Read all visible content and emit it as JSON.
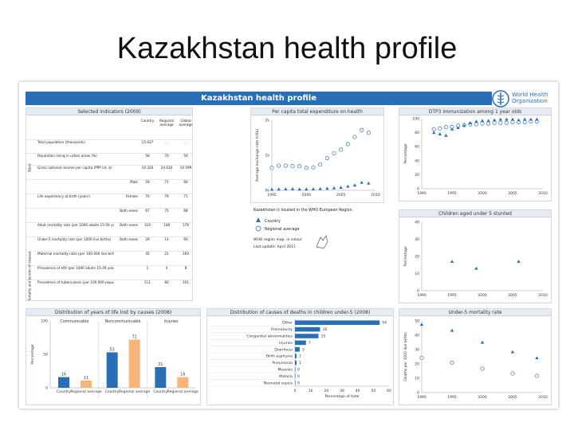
{
  "slide_title": "Kazakhstan health profile",
  "banner_title": "Kazakhstan health profile",
  "who_logo": {
    "line1": "World Health",
    "line2": "Organization",
    "icon": "who-emblem-icon"
  },
  "indicators": {
    "title": "Selected indicators (2009)",
    "columns": [
      "Country",
      "Regional average",
      "Global average"
    ],
    "side_labels": [
      "Basic",
      "Mortality and burden of disease"
    ],
    "rows": [
      {
        "label": "Total population (thousands)",
        "sub": "",
        "values": [
          "15 637",
          "...",
          "..."
        ]
      },
      {
        "label": "Population living in urban areas (%)",
        "sub": "",
        "values": [
          "58",
          "70",
          "50"
        ]
      },
      {
        "label": "Gross national income per capita (PPP int. $)",
        "sub": "",
        "values": [
          "10 320",
          "24 630",
          "10 599"
        ]
      },
      {
        "label": "",
        "sub": "Male",
        "values": [
          "59",
          "71",
          "66"
        ]
      },
      {
        "label": "Life expectancy at birth (years)",
        "sub": "Female",
        "values": [
          "70",
          "79",
          "71"
        ]
      },
      {
        "label": "",
        "sub": "Both sexes",
        "values": [
          "67",
          "75",
          "68"
        ]
      },
      {
        "label": "Adult mortality rate (per 1000 adults 15-59 years)",
        "sub": "Both sexes",
        "values": [
          "310",
          "148",
          "176"
        ]
      },
      {
        "label": "Under-5 mortality rate (per 1000 live births)",
        "sub": "Both sexes",
        "values": [
          "29",
          "14",
          "60"
        ]
      },
      {
        "label": "Maternal mortality ratio (per 100 000 live births)",
        "sub": "",
        "values": [
          "45",
          "21",
          "260"
        ]
      },
      {
        "label": "Prevalence of HIV (per 1000 adults 15-49 years)",
        "sub": "",
        "values": [
          "1",
          "4",
          "8"
        ]
      },
      {
        "label": "Prevalence of tuberculosis (per 100 000 population)",
        "sub": "",
        "values": [
          "211",
          "60",
          "201"
        ]
      }
    ]
  },
  "legend_area": {
    "location_text": "Kazakhstan is located in the WHO European Region.",
    "legend": [
      {
        "symbol": "triangle",
        "label": "Country"
      },
      {
        "symbol": "circle",
        "label": "Regional average"
      }
    ],
    "source_text": "WHO region map, in colour",
    "update_text": "Last update: April 2011"
  },
  "chart_data": [
    {
      "id": "expenditure",
      "type": "scatter",
      "title": "Per capita total expenditure on health",
      "ylabel": "Average exchange rate (US$)",
      "x_ticks": [
        "1995",
        "2000",
        "2005",
        "2010"
      ],
      "y_ticks": [
        "0k",
        "1k",
        "2k"
      ],
      "xlim": [
        1995,
        2010
      ],
      "ylim": [
        0,
        2500
      ],
      "series": [
        {
          "name": "Regional average",
          "marker": "circle",
          "x": [
            1995,
            1996,
            1997,
            1998,
            1999,
            2000,
            2001,
            2002,
            2003,
            2004,
            2005,
            2006,
            2007,
            2008,
            2009
          ],
          "y": [
            800,
            880,
            880,
            860,
            860,
            800,
            820,
            920,
            1150,
            1320,
            1450,
            1650,
            1900,
            2150,
            2050
          ]
        },
        {
          "name": "Country",
          "marker": "triangle",
          "x": [
            1995,
            1996,
            1997,
            1998,
            1999,
            2000,
            2001,
            2002,
            2003,
            2004,
            2005,
            2006,
            2007,
            2008,
            2009
          ],
          "y": [
            30,
            40,
            45,
            50,
            40,
            40,
            45,
            55,
            65,
            80,
            100,
            140,
            180,
            280,
            250
          ]
        }
      ]
    },
    {
      "id": "dtp3",
      "type": "scatter",
      "title": "DTP3 immunization among 1 year olds",
      "ylabel": "Percentage",
      "x_ticks": [
        "1990",
        "1995",
        "2000",
        "2005",
        "2010"
      ],
      "y_ticks": [
        "0",
        "20",
        "40",
        "60",
        "80",
        "100"
      ],
      "xlim": [
        1990,
        2010
      ],
      "ylim": [
        0,
        100
      ],
      "series": [
        {
          "name": "Regional average",
          "marker": "circle",
          "x": [
            1992,
            1993,
            1994,
            1995,
            1996,
            1997,
            1998,
            1999,
            2000,
            2001,
            2002,
            2003,
            2004,
            2005,
            2006,
            2007,
            2008,
            2009
          ],
          "y": [
            85,
            86,
            88,
            88,
            90,
            91,
            92,
            92,
            93,
            93,
            94,
            94,
            94,
            95,
            95,
            95,
            96,
            96
          ]
        },
        {
          "name": "Country",
          "marker": "triangle",
          "x": [
            1992,
            1993,
            1994,
            1995,
            1996,
            1997,
            1998,
            1999,
            2000,
            2001,
            2002,
            2003,
            2004,
            2005,
            2006,
            2007,
            2008,
            2009
          ],
          "y": [
            80,
            78,
            76,
            85,
            87,
            90,
            94,
            96,
            97,
            97,
            98,
            99,
            99,
            99,
            98,
            99,
            99,
            99
          ]
        }
      ]
    },
    {
      "id": "stunted",
      "type": "scatter",
      "title": "Children aged under 5 stunted",
      "ylabel": "Percentage",
      "x_ticks": [
        "1990",
        "1995",
        "2000",
        "2005",
        "2010"
      ],
      "y_ticks": [
        "0",
        "10",
        "20",
        "30",
        "40"
      ],
      "xlim": [
        1990,
        2010
      ],
      "ylim": [
        0,
        40
      ],
      "series": [
        {
          "name": "Country",
          "marker": "triangle",
          "x": [
            1995,
            1999,
            2006
          ],
          "y": [
            17,
            13,
            17
          ]
        }
      ]
    },
    {
      "id": "u5mr",
      "type": "scatter",
      "title": "Under-5 mortality rate",
      "ylabel": "Deaths per 1000 live births",
      "x_ticks": [
        "1990",
        "1995",
        "2000",
        "2005",
        "2010"
      ],
      "y_ticks": [
        "0",
        "10",
        "20",
        "30",
        "40",
        "50"
      ],
      "xlim": [
        1990,
        2010
      ],
      "ylim": [
        0,
        60
      ],
      "series": [
        {
          "name": "Regional average",
          "marker": "circle",
          "x": [
            1990,
            1995,
            2000,
            2005,
            2009
          ],
          "y": [
            29,
            25,
            20,
            16,
            14
          ]
        },
        {
          "name": "Country",
          "marker": "triangle",
          "x": [
            1990,
            1995,
            2000,
            2005,
            2009
          ],
          "y": [
            57,
            52,
            42,
            34,
            29
          ]
        }
      ]
    },
    {
      "id": "yll",
      "type": "bar",
      "title": "Distribution of years of life lost by causes (2008)",
      "ylabel": "Percentage",
      "y_ticks": [
        "0",
        "50",
        "100"
      ],
      "ylim": [
        0,
        100
      ],
      "groups": [
        "Communicable",
        "Noncommunicable",
        "Injuries"
      ],
      "categories": [
        "Country",
        "Regional average"
      ],
      "values": [
        [
          16,
          11
        ],
        [
          53,
          72
        ],
        [
          31,
          16
        ]
      ],
      "colors": [
        "#2a6fb6",
        "#f7b579"
      ]
    },
    {
      "id": "u5deaths",
      "type": "bar",
      "title": "Distribution of causes of deaths in children under-5 (2008)",
      "xlabel": "Percentage of total",
      "x_ticks": [
        "0",
        "10",
        "20",
        "30",
        "40",
        "50",
        "60"
      ],
      "xlim": [
        0,
        60
      ],
      "categories": [
        "Other",
        "Prematurity",
        "Congenital abnormalities",
        "Injuries",
        "Diarrhoea",
        "Birth asphyxia",
        "Pneumonia",
        "Measles",
        "Malaria",
        "Neonatal sepsis"
      ],
      "values": [
        54,
        16,
        15,
        7,
        3,
        1,
        1,
        0,
        0,
        0
      ]
    }
  ]
}
